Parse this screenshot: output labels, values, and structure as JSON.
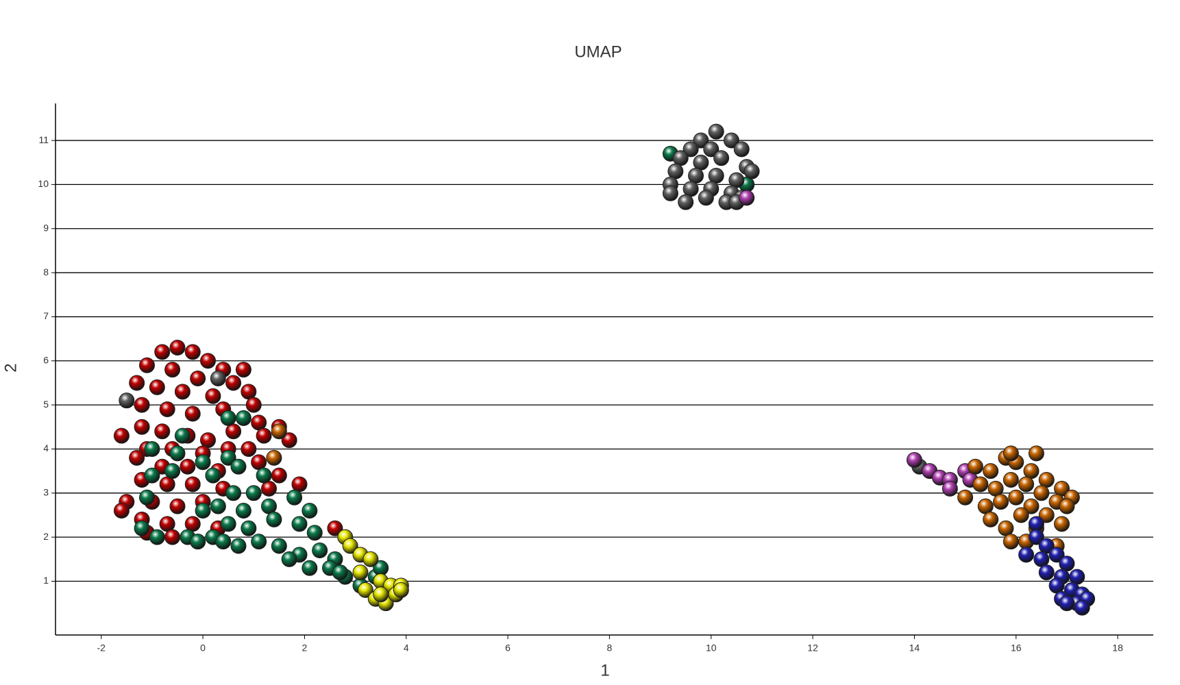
{
  "chart_data": {
    "type": "scatter",
    "title": "UMAP",
    "x_label": "1",
    "y_label": "2",
    "xlim": [
      -2.9,
      18.7
    ],
    "ylim": [
      -0.22,
      11.84
    ],
    "xticks": [
      -2,
      0,
      2,
      4,
      6,
      8,
      10,
      12,
      14,
      16,
      18
    ],
    "yticks": [
      1,
      2,
      3,
      4,
      5,
      6,
      7,
      8,
      9,
      10,
      11
    ],
    "grid": true,
    "series": [
      {
        "color": "#c00000",
        "x": [
          -0.5,
          -0.8,
          -0.2,
          0.1,
          0.4,
          -1.1,
          -0.6,
          -0.1,
          0.6,
          0.9,
          -1.3,
          -0.9,
          -0.4,
          0.2,
          1.0,
          -1.2,
          -0.7,
          -0.2,
          0.4,
          1.1,
          -1.2,
          -0.8,
          -0.3,
          0.1,
          0.6,
          1.2,
          -1.6,
          -1.1,
          -0.6,
          0.0,
          0.5,
          0.9,
          -1.3,
          -0.8,
          -0.3,
          0.3,
          1.1,
          1.5,
          -1.2,
          -0.7,
          -0.2,
          0.4,
          1.3,
          1.9,
          -1.5,
          -1.0,
          -0.5,
          0.0,
          -1.6,
          -1.2,
          -0.7,
          -0.2,
          0.3,
          -1.1,
          -0.6,
          -0.1,
          2.6,
          1.5,
          1.7,
          0.8
        ],
        "values": [
          6.3,
          6.2,
          6.2,
          6.0,
          5.8,
          5.9,
          5.8,
          5.6,
          5.5,
          5.3,
          5.5,
          5.4,
          5.3,
          5.2,
          5.0,
          5.0,
          4.9,
          4.8,
          4.9,
          4.6,
          4.5,
          4.4,
          4.3,
          4.2,
          4.4,
          4.3,
          4.3,
          4.0,
          4.0,
          3.9,
          4.0,
          4.0,
          3.8,
          3.6,
          3.6,
          3.5,
          3.7,
          3.4,
          3.3,
          3.2,
          3.2,
          3.1,
          3.1,
          3.2,
          2.8,
          2.8,
          2.7,
          2.8,
          2.6,
          2.4,
          2.3,
          2.3,
          2.2,
          2.1,
          2.0,
          1.9,
          2.2,
          4.5,
          4.2,
          5.8
        ]
      },
      {
        "color": "#0a7a4a",
        "x": [
          -0.4,
          -1.0,
          -0.5,
          0.5,
          0.8,
          0.0,
          0.5,
          -1.0,
          -0.6,
          0.2,
          0.7,
          1.2,
          0.6,
          1.0,
          0.3,
          0.8,
          1.3,
          1.8,
          2.1,
          0.0,
          -1.1,
          0.5,
          0.9,
          1.4,
          1.9,
          2.2,
          -1.2,
          -0.9,
          -0.3,
          0.2,
          0.7,
          1.1,
          1.5,
          1.9,
          2.3,
          2.6,
          1.7,
          2.1,
          2.5,
          2.8,
          3.1,
          3.4,
          3.5,
          2.7,
          -0.1,
          0.4,
          9.2,
          10.7
        ],
        "values": [
          4.3,
          4.0,
          3.9,
          4.7,
          4.7,
          3.7,
          3.8,
          3.4,
          3.5,
          3.4,
          3.6,
          3.4,
          3.0,
          3.0,
          2.7,
          2.6,
          2.7,
          2.9,
          2.6,
          2.6,
          2.9,
          2.3,
          2.2,
          2.4,
          2.3,
          2.1,
          2.2,
          2.0,
          2.0,
          2.0,
          1.8,
          1.9,
          1.8,
          1.6,
          1.7,
          1.5,
          1.5,
          1.3,
          1.3,
          1.1,
          0.9,
          1.1,
          1.3,
          1.2,
          1.9,
          1.9,
          10.7,
          10.0
        ]
      },
      {
        "color": "#e6e600",
        "x": [
          2.8,
          2.9,
          3.1,
          3.3,
          3.1,
          3.5,
          3.7,
          3.9,
          3.2,
          3.4,
          3.6,
          3.8,
          3.9,
          3.5
        ],
        "values": [
          2.0,
          1.8,
          1.6,
          1.5,
          1.2,
          1.0,
          0.9,
          0.9,
          0.8,
          0.6,
          0.5,
          0.7,
          0.8,
          0.7
        ]
      },
      {
        "color": "#606060",
        "x": [
          10.1,
          9.8,
          10.4,
          9.6,
          10.0,
          10.6,
          9.4,
          9.8,
          10.2,
          10.7,
          9.3,
          9.7,
          10.1,
          10.5,
          9.2,
          9.6,
          10.0,
          10.4,
          10.6,
          9.2,
          9.5,
          9.9,
          10.3,
          10.5,
          10.8,
          -1.5,
          0.3,
          14.1
        ],
        "values": [
          11.2,
          11.0,
          11.0,
          10.8,
          10.8,
          10.8,
          10.6,
          10.5,
          10.6,
          10.4,
          10.3,
          10.2,
          10.2,
          10.1,
          10.0,
          9.9,
          9.9,
          9.8,
          9.7,
          9.8,
          9.6,
          9.7,
          9.6,
          9.6,
          10.3,
          5.1,
          5.6,
          3.6
        ]
      },
      {
        "color": "#b040b0",
        "x": [
          14.0,
          14.3,
          14.5,
          14.7,
          14.7,
          15.0,
          15.1,
          10.7
        ],
        "values": [
          3.75,
          3.5,
          3.35,
          3.3,
          3.1,
          3.5,
          3.3,
          9.7
        ]
      },
      {
        "color": "#c86400",
        "x": [
          1.5,
          1.4,
          15.2,
          15.5,
          15.8,
          16.0,
          16.3,
          16.6,
          16.9,
          17.1,
          15.3,
          15.6,
          15.9,
          16.2,
          16.5,
          16.8,
          17.0,
          15.0,
          15.4,
          15.7,
          16.0,
          16.3,
          16.6,
          16.9,
          15.5,
          15.8,
          16.1,
          16.4,
          15.9,
          16.2,
          16.8,
          16.4,
          15.9
        ],
        "values": [
          4.4,
          3.8,
          3.6,
          3.5,
          3.8,
          3.7,
          3.5,
          3.3,
          3.1,
          2.9,
          3.2,
          3.1,
          3.3,
          3.2,
          3.0,
          2.8,
          2.7,
          2.9,
          2.7,
          2.8,
          2.9,
          2.7,
          2.5,
          2.3,
          2.4,
          2.2,
          2.5,
          2.2,
          1.9,
          1.9,
          1.8,
          3.9,
          3.9
        ]
      },
      {
        "color": "#2020b0",
        "x": [
          16.4,
          16.4,
          16.6,
          16.2,
          16.5,
          16.8,
          17.0,
          16.6,
          16.9,
          17.2,
          16.8,
          17.1,
          17.3,
          16.9,
          17.2,
          17.4,
          17.0,
          17.3
        ],
        "values": [
          2.3,
          2.0,
          1.8,
          1.6,
          1.5,
          1.6,
          1.4,
          1.2,
          1.1,
          1.1,
          0.9,
          0.8,
          0.7,
          0.6,
          0.5,
          0.6,
          0.5,
          0.4
        ]
      }
    ]
  }
}
